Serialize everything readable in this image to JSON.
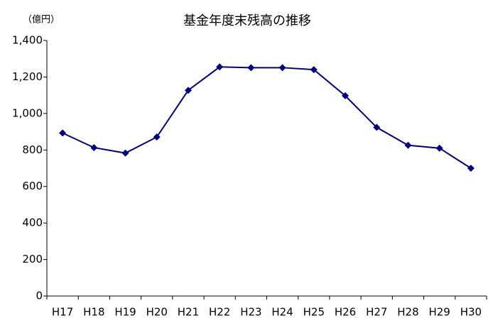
{
  "chart_data": {
    "type": "line",
    "title": "基金年度末残高の推移",
    "y_label": "（億円）",
    "categories": [
      "H17",
      "H18",
      "H19",
      "H20",
      "H21",
      "H22",
      "H23",
      "H24",
      "H25",
      "H26",
      "H27",
      "H28",
      "H29",
      "H30"
    ],
    "series": [
      {
        "name": "基金年度末残高",
        "color": "#000080",
        "values": [
          893,
          813,
          783,
          871,
          1127,
          1255,
          1251,
          1251,
          1240,
          1097,
          924,
          826,
          810,
          700
        ]
      }
    ],
    "ylim": [
      0,
      1400
    ],
    "yticks": [
      0,
      200,
      400,
      600,
      800,
      {
        "value": 1000,
        "label": "1,000"
      },
      {
        "value": 1200,
        "label": "1,200"
      },
      {
        "value": 1400,
        "label": "1,400"
      }
    ],
    "grid": false
  }
}
